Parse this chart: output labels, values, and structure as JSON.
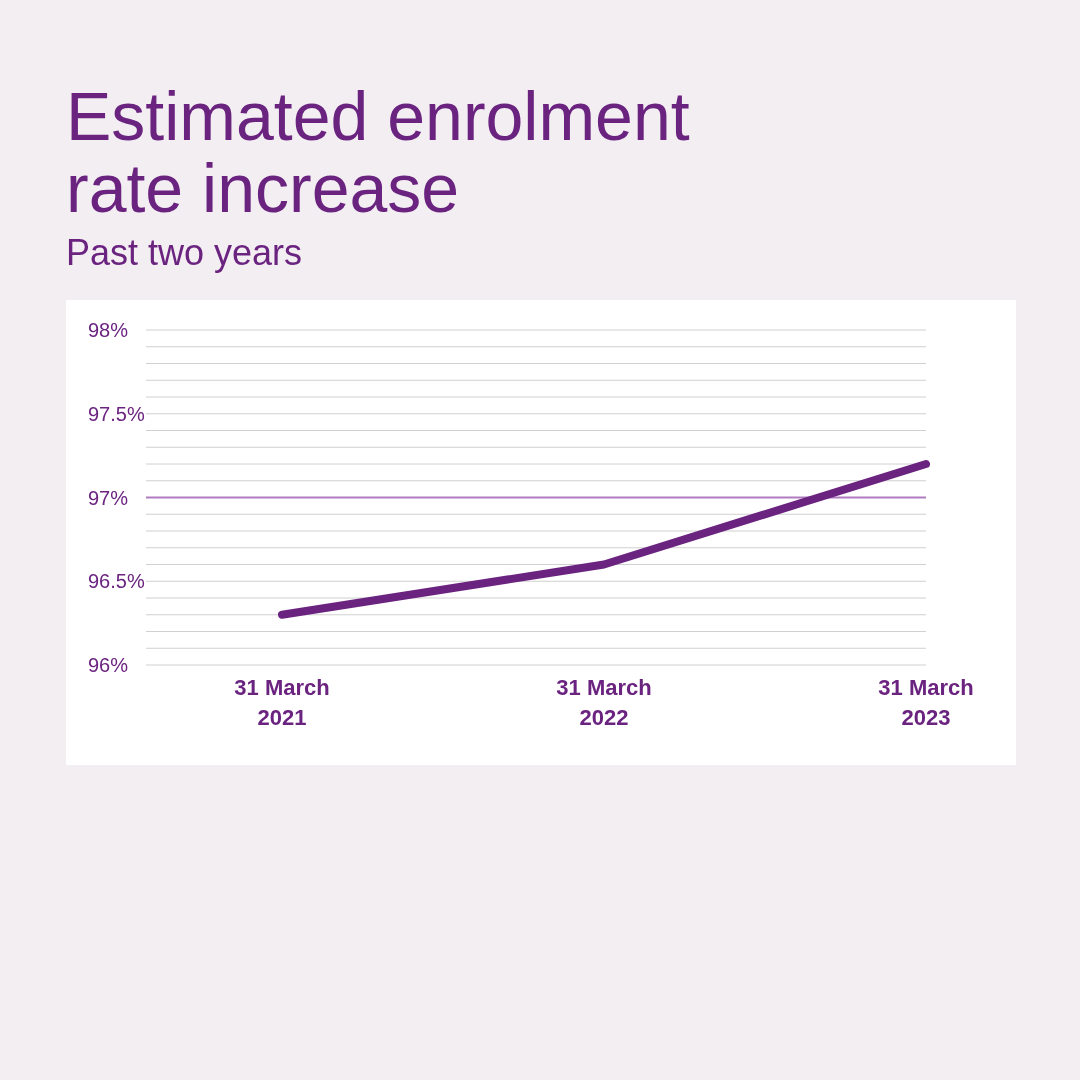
{
  "chart_data": {
    "type": "line",
    "title": "Estimated enrolment rate increase",
    "subtitle": "Past two years",
    "categories": [
      "31 March 2021",
      "31 March 2022",
      "31 March 2023"
    ],
    "series": [
      {
        "color": "#6b2380",
        "values": [
          96.3,
          96.6,
          97.2
        ]
      }
    ],
    "ylim": [
      96,
      98
    ],
    "yticks": [
      {
        "value": 96,
        "label": "96%"
      },
      {
        "value": 96.1,
        "label": null
      },
      {
        "value": 96.2,
        "label": null
      },
      {
        "value": 96.3,
        "label": null
      },
      {
        "value": 96.4,
        "label": null
      },
      {
        "value": 96.5,
        "label": "96.5%"
      },
      {
        "value": 96.6,
        "label": null
      },
      {
        "value": 96.7,
        "label": null
      },
      {
        "value": 96.8,
        "label": null
      },
      {
        "value": 96.9,
        "label": null
      },
      {
        "value": 97,
        "label": "97%"
      },
      {
        "value": 97.1,
        "label": null
      },
      {
        "value": 97.2,
        "label": null
      },
      {
        "value": 97.3,
        "label": null
      },
      {
        "value": 97.4,
        "label": null
      },
      {
        "value": 97.5,
        "label": "97.5%"
      },
      {
        "value": 97.6,
        "label": null
      },
      {
        "value": 97.7,
        "label": null
      },
      {
        "value": 97.8,
        "label": null
      },
      {
        "value": 97.9,
        "label": null
      },
      {
        "value": 98,
        "label": "98%"
      }
    ],
    "ref_lines": [
      {
        "axis": "y",
        "value": 97,
        "color": "#b07cc0"
      }
    ],
    "grid": "y",
    "marker": "none",
    "line_style": "solid"
  }
}
